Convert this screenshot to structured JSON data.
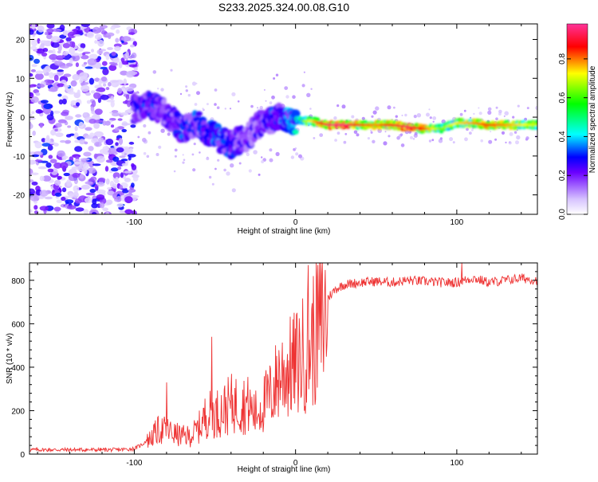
{
  "figure": {
    "title": "S233.2025.324.00.08.G10"
  },
  "spectrogram": {
    "xlabel": "Height of straight line (km)",
    "ylabel": "Frequency (Hz)",
    "xlim": [
      -165,
      150
    ],
    "ylim": [
      -25,
      24
    ],
    "x_ticks": [
      -100,
      0,
      100
    ],
    "y_ticks": [
      -20,
      -10,
      0,
      10,
      20
    ]
  },
  "colorbar": {
    "label": "Normalized spectral amplitude",
    "range": [
      0,
      0.98
    ],
    "ticks": [
      0.0,
      0.2,
      0.4,
      0.6,
      0.8
    ]
  },
  "chart_data": [
    {
      "type": "heatmap",
      "title": "S233.2025.324.00.08.G10",
      "xlabel": "Height of straight line (km)",
      "ylabel": "Frequency (Hz)",
      "xlim": [
        -165,
        150
      ],
      "ylim": [
        -25,
        24
      ],
      "colorbar_label": "Normalized spectral amplitude",
      "description_points": {
        "x": [
          -100,
          -90,
          -80,
          -70,
          -60,
          -50,
          -40,
          -30,
          -20,
          -10,
          0,
          10,
          20,
          30,
          40,
          50,
          60,
          70,
          80,
          90,
          100,
          110,
          120,
          130,
          140,
          150
        ],
        "peak_freq": [
          2,
          3,
          1,
          -3,
          -2,
          -5,
          -7,
          -5,
          -1,
          0,
          -1,
          -1,
          -2,
          -2,
          -2,
          -2,
          -2,
          -2.5,
          -3,
          -3,
          -1.5,
          -1.5,
          -2,
          -2,
          -2,
          -2
        ],
        "peak_amp": [
          0.3,
          0.35,
          0.3,
          0.35,
          0.35,
          0.4,
          0.35,
          0.3,
          0.3,
          0.4,
          0.5,
          0.7,
          0.9,
          0.95,
          0.8,
          0.75,
          0.85,
          0.9,
          0.8,
          0.6,
          0.7,
          0.75,
          0.8,
          0.75,
          0.7,
          0.65
        ]
      }
    },
    {
      "type": "line",
      "xlabel": "Height of straight line (km)",
      "ylabel": "SNR (10 * v/v)",
      "xlim": [
        -165,
        150
      ],
      "ylim": [
        0,
        880
      ],
      "x_ticks": [
        -100,
        0,
        100
      ],
      "y_ticks": [
        0,
        200,
        400,
        600,
        800
      ],
      "series": [
        {
          "name": "SNR",
          "color": "#ee3333",
          "x": [
            -165,
            -150,
            -130,
            -110,
            -100,
            -95,
            -90,
            -85,
            -80,
            -75,
            -70,
            -65,
            -60,
            -55,
            -50,
            -45,
            -40,
            -35,
            -30,
            -25,
            -20,
            -15,
            -10,
            -5,
            0,
            5,
            10,
            15,
            20,
            25,
            30,
            40,
            50,
            60,
            70,
            80,
            90,
            100,
            110,
            120,
            130,
            140,
            150
          ],
          "values": [
            20,
            20,
            20,
            20,
            25,
            45,
            80,
            120,
            120,
            100,
            90,
            90,
            130,
            200,
            200,
            220,
            250,
            250,
            250,
            200,
            250,
            300,
            400,
            420,
            450,
            500,
            560,
            650,
            720,
            760,
            780,
            790,
            795,
            790,
            800,
            795,
            790,
            790,
            810,
            790,
            800,
            810,
            800
          ]
        }
      ],
      "peaks": [
        {
          "x": -80,
          "y": 330
        },
        {
          "x": -52,
          "y": 540
        },
        {
          "x": 8,
          "y": 870
        },
        {
          "x": 103,
          "y": 880
        }
      ]
    }
  ]
}
